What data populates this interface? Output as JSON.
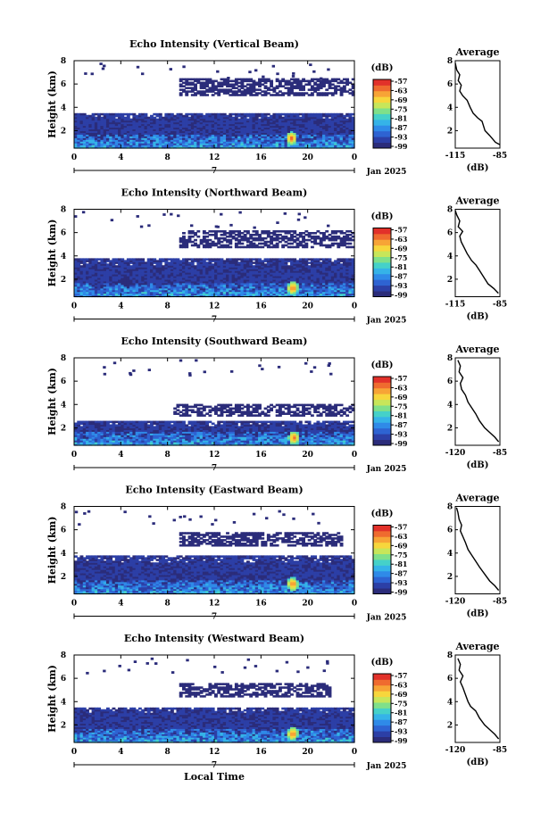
{
  "figure": {
    "xlabel": "Local Time",
    "date_label": "Jan 2025",
    "avg_title": "Average",
    "unit_label": "(dB)"
  },
  "colorbar": {
    "ticks": [
      "-57",
      "-63",
      "-69",
      "-75",
      "-81",
      "-87",
      "-93",
      "-99"
    ],
    "colors": [
      "#2b2c7a",
      "#2c3fa6",
      "#2e63d2",
      "#2f8ae8",
      "#35b3e8",
      "#45d1c9",
      "#7fe08a",
      "#c7e65a",
      "#f7d63c",
      "#f7a436",
      "#ef6b2f",
      "#e2312a"
    ]
  },
  "chart_data": [
    {
      "type": "heatmap",
      "title": "Echo Intensity (Vertical Beam)",
      "xlabel": "",
      "ylabel": "Height (km)",
      "xlim": [
        0,
        24
      ],
      "ylim": [
        0.5,
        8
      ],
      "x_ticks": [
        "0",
        "4",
        "8",
        "12",
        "16",
        "20",
        "0"
      ],
      "y_ticks": [
        "2",
        "4",
        "6",
        "8"
      ],
      "day_label": "7",
      "clim": [
        -99,
        -57
      ],
      "echo_layers": [
        {
          "name": "boundary",
          "z_range": [
            0.5,
            3.5
          ],
          "value": -95
        },
        {
          "name": "mid",
          "z_range": [
            5.0,
            6.5
          ],
          "t_range": [
            9,
            24
          ],
          "value": -98
        }
      ],
      "strong_echo": {
        "t": 18.5,
        "z": 1.3,
        "value": -60
      },
      "profile": {
        "x_ticks": [
          "-115",
          "-85"
        ],
        "y_ticks": [
          "2",
          "4",
          "6",
          "8"
        ],
        "xlim": [
          -115,
          -85
        ],
        "ylim": [
          0.5,
          8
        ],
        "points": [
          [
            -85,
            0.8
          ],
          [
            -88,
            1.0
          ],
          [
            -92,
            1.6
          ],
          [
            -95,
            2.0
          ],
          [
            -97,
            2.8
          ],
          [
            -100,
            3.1
          ],
          [
            -103,
            3.5
          ],
          [
            -105,
            4.0
          ],
          [
            -107,
            4.6
          ],
          [
            -110,
            5.0
          ],
          [
            -112,
            5.4
          ],
          [
            -111,
            5.9
          ],
          [
            -113,
            6.3
          ],
          [
            -112,
            6.8
          ],
          [
            -114,
            7.2
          ],
          [
            -115,
            7.8
          ]
        ]
      }
    },
    {
      "type": "heatmap",
      "title": "Echo Intensity (Northward Beam)",
      "xlabel": "",
      "ylabel": "Height (km)",
      "xlim": [
        0,
        24
      ],
      "ylim": [
        0.5,
        8
      ],
      "x_ticks": [
        "0",
        "4",
        "8",
        "12",
        "16",
        "20",
        "0"
      ],
      "y_ticks": [
        "2",
        "4",
        "6",
        "8"
      ],
      "day_label": "7",
      "clim": [
        -99,
        -57
      ],
      "echo_layers": [
        {
          "name": "boundary",
          "z_range": [
            0.5,
            3.7
          ],
          "value": -95
        },
        {
          "name": "mid",
          "z_range": [
            4.7,
            6.2
          ],
          "t_range": [
            9,
            24
          ],
          "value": -98
        }
      ],
      "strong_echo": {
        "t": 18.6,
        "z": 1.2,
        "value": -60
      },
      "profile": {
        "x_ticks": [
          "-115",
          "-85"
        ],
        "y_ticks": [
          "2",
          "4",
          "6",
          "8"
        ],
        "xlim": [
          -115,
          -85
        ],
        "ylim": [
          0.5,
          8
        ],
        "points": [
          [
            -86,
            0.8
          ],
          [
            -89,
            1.2
          ],
          [
            -93,
            1.6
          ],
          [
            -96,
            2.2
          ],
          [
            -99,
            2.8
          ],
          [
            -101,
            3.2
          ],
          [
            -104,
            3.6
          ],
          [
            -107,
            4.2
          ],
          [
            -109,
            4.7
          ],
          [
            -111,
            5.2
          ],
          [
            -112,
            5.7
          ],
          [
            -110,
            6.1
          ],
          [
            -113,
            6.5
          ],
          [
            -112,
            7.0
          ],
          [
            -114,
            7.5
          ],
          [
            -115,
            7.9
          ]
        ]
      }
    },
    {
      "type": "heatmap",
      "title": "Echo Intensity (Southward Beam)",
      "xlabel": "",
      "ylabel": "Height (km)",
      "xlim": [
        0,
        24
      ],
      "ylim": [
        0.5,
        8
      ],
      "x_ticks": [
        "0",
        "4",
        "8",
        "12",
        "16",
        "20",
        "0"
      ],
      "y_ticks": [
        "2",
        "4",
        "6",
        "8"
      ],
      "day_label": "7",
      "clim": [
        -99,
        -57
      ],
      "echo_layers": [
        {
          "name": "boundary",
          "z_range": [
            0.5,
            2.6
          ],
          "value": -95
        },
        {
          "name": "mid",
          "z_range": [
            3.0,
            4.0
          ],
          "t_range": [
            8.5,
            24
          ],
          "value": -98
        }
      ],
      "strong_echo": {
        "t": 18.7,
        "z": 1.1,
        "value": -60
      },
      "profile": {
        "x_ticks": [
          "-120",
          "-85"
        ],
        "y_ticks": [
          "2",
          "4",
          "6",
          "8"
        ],
        "xlim": [
          -120,
          -85
        ],
        "ylim": [
          0.5,
          8
        ],
        "points": [
          [
            -86,
            0.8
          ],
          [
            -89,
            1.2
          ],
          [
            -93,
            1.6
          ],
          [
            -97,
            2.0
          ],
          [
            -101,
            2.6
          ],
          [
            -104,
            3.2
          ],
          [
            -107,
            3.7
          ],
          [
            -110,
            4.2
          ],
          [
            -112,
            4.8
          ],
          [
            -115,
            5.3
          ],
          [
            -116,
            5.8
          ],
          [
            -114,
            6.3
          ],
          [
            -117,
            6.8
          ],
          [
            -116,
            7.3
          ],
          [
            -118,
            7.8
          ]
        ]
      }
    },
    {
      "type": "heatmap",
      "title": "Echo Intensity (Eastward Beam)",
      "xlabel": "",
      "ylabel": "Height (km)",
      "xlim": [
        0,
        24
      ],
      "ylim": [
        0.5,
        8
      ],
      "x_ticks": [
        "0",
        "4",
        "8",
        "12",
        "16",
        "20",
        "0"
      ],
      "y_ticks": [
        "2",
        "4",
        "6",
        "8"
      ],
      "day_label": "7",
      "clim": [
        -99,
        -57
      ],
      "echo_layers": [
        {
          "name": "boundary",
          "z_range": [
            0.5,
            3.7
          ],
          "value": -95
        },
        {
          "name": "mid",
          "z_range": [
            4.6,
            5.8
          ],
          "t_range": [
            9,
            23
          ],
          "value": -98
        }
      ],
      "strong_echo": {
        "t": 18.6,
        "z": 1.3,
        "value": -60
      },
      "profile": {
        "x_ticks": [
          "-120",
          "-85"
        ],
        "y_ticks": [
          "2",
          "4",
          "6",
          "8"
        ],
        "xlim": [
          -120,
          -85
        ],
        "ylim": [
          0.5,
          8
        ],
        "points": [
          [
            -86,
            0.8
          ],
          [
            -89,
            1.2
          ],
          [
            -93,
            1.6
          ],
          [
            -97,
            2.2
          ],
          [
            -101,
            2.8
          ],
          [
            -104,
            3.3
          ],
          [
            -107,
            3.8
          ],
          [
            -110,
            4.3
          ],
          [
            -112,
            4.9
          ],
          [
            -114,
            5.4
          ],
          [
            -116,
            5.9
          ],
          [
            -115,
            6.4
          ],
          [
            -117,
            6.9
          ],
          [
            -118,
            7.5
          ],
          [
            -119,
            7.9
          ]
        ]
      }
    },
    {
      "type": "heatmap",
      "title": "Echo Intensity (Westward Beam)",
      "xlabel": "Local Time",
      "ylabel": "Height (km)",
      "xlim": [
        0,
        24
      ],
      "ylim": [
        0.5,
        8
      ],
      "x_ticks": [
        "0",
        "4",
        "8",
        "12",
        "16",
        "20",
        "0"
      ],
      "y_ticks": [
        "2",
        "4",
        "6",
        "8"
      ],
      "day_label": "7",
      "clim": [
        -99,
        -57
      ],
      "echo_layers": [
        {
          "name": "boundary",
          "z_range": [
            0.5,
            3.5
          ],
          "value": -95
        },
        {
          "name": "mid",
          "z_range": [
            4.4,
            5.6
          ],
          "t_range": [
            9,
            22
          ],
          "value": -98
        }
      ],
      "strong_echo": {
        "t": 18.6,
        "z": 1.2,
        "value": -60
      },
      "profile": {
        "x_ticks": [
          "-120",
          "-85"
        ],
        "y_ticks": [
          "2",
          "4",
          "6",
          "8"
        ],
        "xlim": [
          -120,
          -85
        ],
        "ylim": [
          0.5,
          8
        ],
        "points": [
          [
            -86,
            0.8
          ],
          [
            -89,
            1.2
          ],
          [
            -93,
            1.6
          ],
          [
            -97,
            2.0
          ],
          [
            -101,
            2.6
          ],
          [
            -104,
            3.2
          ],
          [
            -108,
            3.6
          ],
          [
            -110,
            4.0
          ],
          [
            -112,
            4.6
          ],
          [
            -114,
            5.2
          ],
          [
            -116,
            5.7
          ],
          [
            -114,
            6.2
          ],
          [
            -117,
            6.7
          ],
          [
            -116,
            7.2
          ],
          [
            -118,
            7.7
          ]
        ]
      }
    }
  ]
}
